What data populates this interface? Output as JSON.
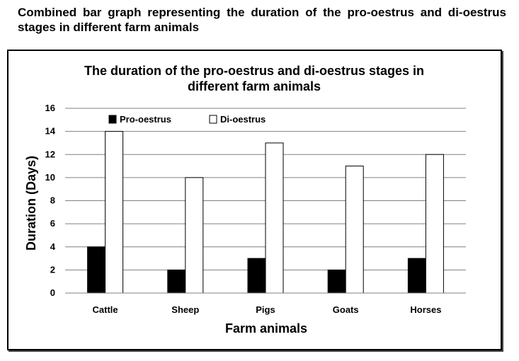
{
  "page": {
    "heading": "Combined bar graph representing the duration of the pro-oestrus and di-oestrus stages in different farm animals"
  },
  "chart_data": {
    "type": "bar",
    "title_line1": "The duration of the pro-oestrus and di-oestrus stages in",
    "title_line2": "different farm animals",
    "xlabel": "Farm animals",
    "ylabel": "Duration (Days)",
    "categories": [
      "Cattle",
      "Sheep",
      "Pigs",
      "Goats",
      "Horses"
    ],
    "series": [
      {
        "name": "Pro-oestrus",
        "values": [
          4,
          2,
          3,
          2,
          3
        ],
        "fill": "#000000"
      },
      {
        "name": "Di-oestrus",
        "values": [
          14,
          10,
          13,
          11,
          12
        ],
        "fill": "#ffffff"
      }
    ],
    "ylim": [
      0,
      16
    ],
    "yticks": [
      "0",
      "2",
      "4",
      "6",
      "8",
      "10",
      "12",
      "14",
      "16"
    ],
    "grid": true,
    "legend_position": "top-left"
  }
}
